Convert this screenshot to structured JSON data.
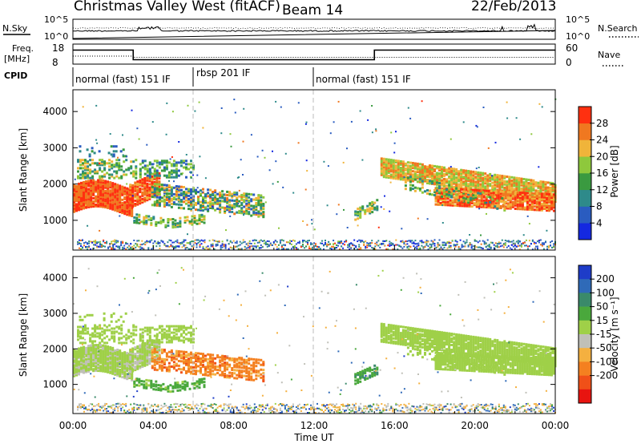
{
  "header": {
    "station": "Christmas Valley West (fitACF)",
    "beam": "Beam 14",
    "date": "22/Feb/2013"
  },
  "top_panels": {
    "noise_left_label": "N.Sky",
    "noise_right_label": "N.Search",
    "noise_ticks": [
      "10^5",
      "10^0"
    ],
    "freq_label_line1": "Freq.",
    "freq_label_line2": "[MHz]",
    "freq_ticks": [
      "18",
      "8"
    ],
    "nave_label": "Nave",
    "nave_ticks": [
      "60",
      "0"
    ],
    "cpid_label": "CPID",
    "cpid_segments": [
      {
        "label": "normal (fast) 151 IF",
        "start_h": 0,
        "end_h": 6
      },
      {
        "label": "rbsp 201 IF",
        "start_h": 6,
        "end_h": 12
      },
      {
        "label": "normal (fast) 151 IF",
        "start_h": 12,
        "end_h": 24
      }
    ]
  },
  "chart_data": [
    {
      "type": "heatmap",
      "title": "Power",
      "ylabel": "Slant Range [km]",
      "xlabel": "Time UT",
      "x_ticks": [
        "00:00",
        "04:00",
        "08:00",
        "12:00",
        "16:00",
        "20:00",
        "00:00"
      ],
      "x_range_hours": [
        0,
        24
      ],
      "y_ticks": [
        "1000",
        "2000",
        "3000",
        "4000"
      ],
      "y_range_km": [
        180,
        4600
      ],
      "colorbar": {
        "label": "Power [dB]",
        "ticks": [
          "4",
          "8",
          "12",
          "16",
          "20",
          "24",
          "28"
        ],
        "range": [
          0,
          32
        ],
        "colors": [
          "#1428e0",
          "#2a5cc0",
          "#2e8a8a",
          "#3a9a40",
          "#8ec83c",
          "#f0b43a",
          "#f07820",
          "#ff3010"
        ]
      }
    },
    {
      "type": "heatmap",
      "title": "Velocity",
      "ylabel": "Slant Range [km]",
      "xlabel": "Time UT",
      "x_ticks": [
        "00:00",
        "04:00",
        "08:00",
        "12:00",
        "16:00",
        "20:00",
        "00:00"
      ],
      "x_range_hours": [
        0,
        24
      ],
      "y_ticks": [
        "1000",
        "2000",
        "3000",
        "4000"
      ],
      "y_range_km": [
        180,
        4600
      ],
      "colorbar": {
        "label": "Velocity [m s⁻¹]",
        "ticks": [
          "200",
          "100",
          "50",
          "15",
          "-15",
          "-50",
          "-100",
          "-200"
        ],
        "range": [
          -250,
          250
        ],
        "colors": [
          "#1e3cc8",
          "#2f6ab8",
          "#3a8a6a",
          "#4aa83c",
          "#9fd048",
          "#c0c0b8",
          "#f4b040",
          "#f48020",
          "#f05018",
          "#e81410"
        ]
      }
    }
  ],
  "xaxis_title": "Time UT"
}
